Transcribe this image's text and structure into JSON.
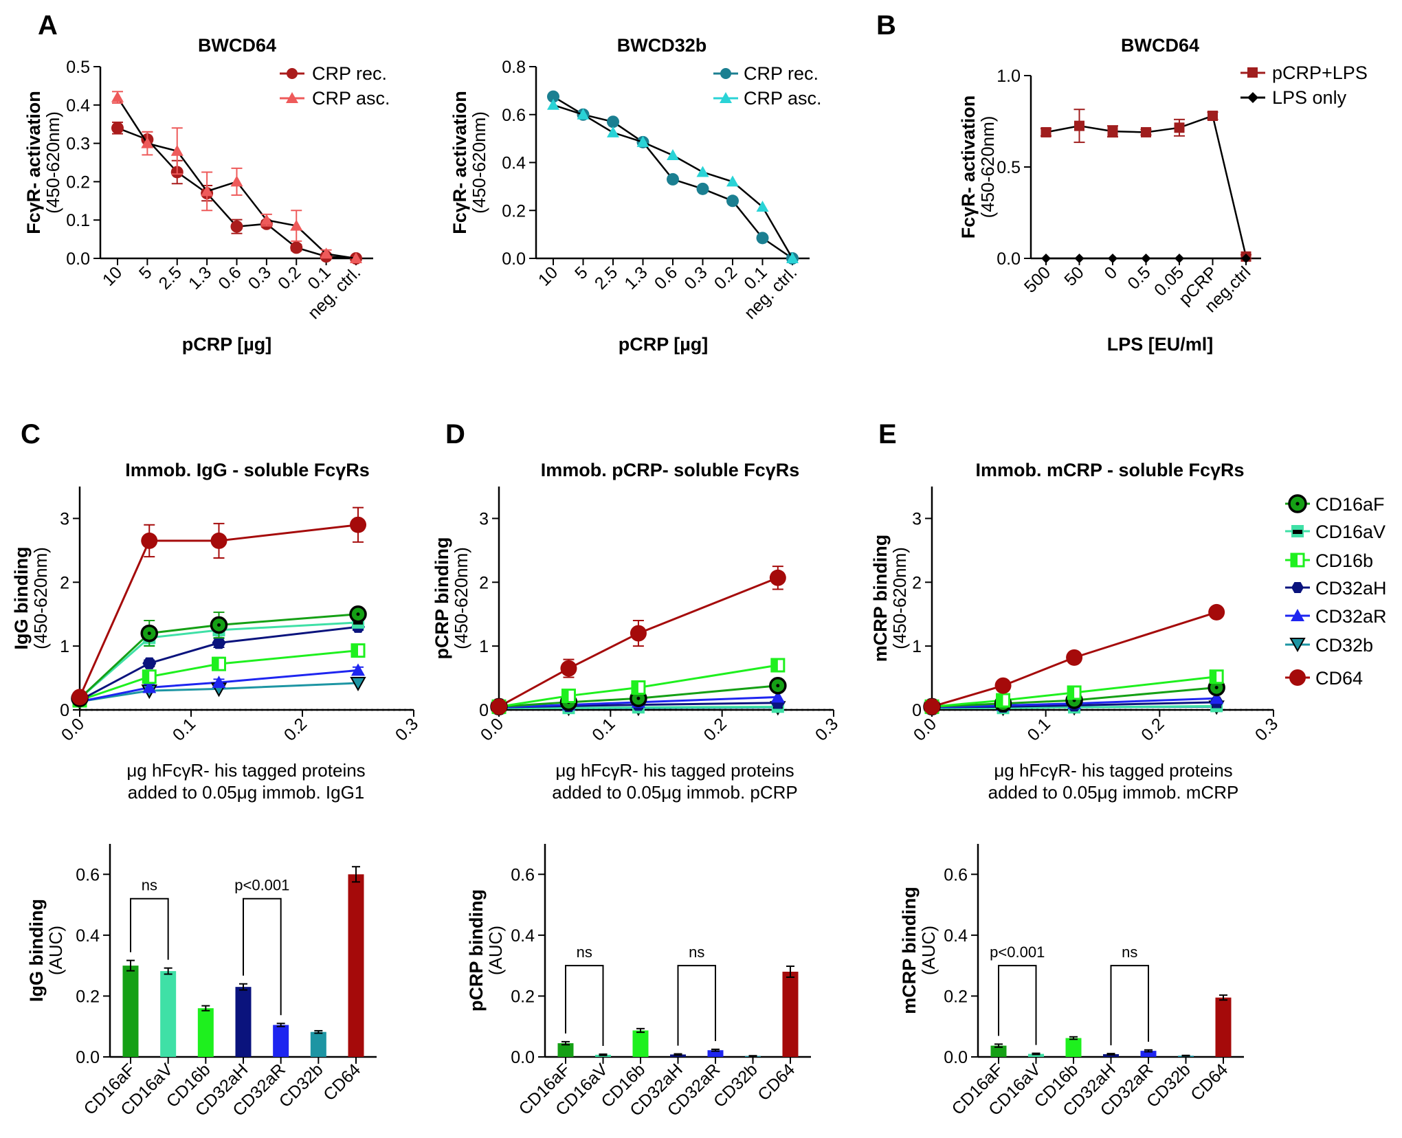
{
  "panel_labels": {
    "A": "A",
    "B": "B",
    "C": "C",
    "D": "D",
    "E": "E"
  },
  "axis_text": {
    "fcyr_main": "FcγR- activation",
    "fcyr_sub": "(450-620nm)",
    "nm_sub": "(450-620nm)",
    "auc_sub": "(AUC)",
    "binding_x1": "μg hFcγR- his tagged proteins"
  },
  "legend": {
    "crp_rec": "CRP rec.",
    "crp_asc": "CRP asc.",
    "pcrp_lps": "pCRP+LPS",
    "lps_only": "LPS only",
    "fcgr": [
      "CD16aF",
      "CD16aV",
      "CD16b",
      "CD32aH",
      "CD32aR",
      "CD32b",
      "CD64"
    ]
  },
  "colors": {
    "CD16aF": "#15a015",
    "CD16aV": "#3fe0a6",
    "CD16b": "#1ef01e",
    "CD32aH": "#0a137d",
    "CD32aR": "#1e25f0",
    "CD32b": "#1d95a3",
    "CD64": "#a50a0a",
    "crp_rec_A": "#aa1c1c",
    "crp_asc_A": "#ee5a5a",
    "crp_rec_A2": "#1b7f91",
    "crp_asc_A2": "#2ad3d6",
    "pcrp_lps": "#a01e1e"
  },
  "chart_data": [
    {
      "id": "A1",
      "type": "line",
      "title": "BWCD64",
      "xlabel": "pCRP [µg]",
      "ylabel": "FcγR- activation (450-620nm)",
      "categories": [
        "10",
        "5",
        "2.5",
        "1.3",
        "0.6",
        "0.3",
        "0.2",
        "0.1",
        "neg. ctrl."
      ],
      "ylim": [
        0,
        0.5
      ],
      "yticks": [
        "0.0",
        "0.1",
        "0.2",
        "0.3",
        "0.4",
        "0.5"
      ],
      "series": [
        {
          "name": "CRP rec.",
          "values": [
            0.34,
            0.31,
            0.225,
            0.17,
            0.083,
            0.09,
            0.028,
            0.005,
            0.0
          ],
          "errors": [
            0.015,
            0.02,
            0.03,
            0.02,
            0.018,
            0.008,
            0.008,
            0.005,
            0
          ]
        },
        {
          "name": "CRP asc.",
          "values": [
            0.42,
            0.3,
            0.28,
            0.175,
            0.2,
            0.1,
            0.085,
            0.012,
            0.0
          ],
          "errors": [
            0.015,
            0.03,
            0.06,
            0.05,
            0.035,
            0.015,
            0.04,
            0.01,
            0
          ]
        }
      ]
    },
    {
      "id": "A2",
      "type": "line",
      "title": "BWCD32b",
      "xlabel": "pCRP [µg]",
      "ylabel": "FcγR- activation (450-620nm)",
      "categories": [
        "10",
        "5",
        "2.5",
        "1.3",
        "0.6",
        "0.3",
        "0.2",
        "0.1",
        "neg. ctrl."
      ],
      "ylim": [
        0,
        0.8
      ],
      "yticks": [
        "0.0",
        "0.2",
        "0.4",
        "0.6",
        "0.8"
      ],
      "series": [
        {
          "name": "CRP rec.",
          "values": [
            0.675,
            0.6,
            0.57,
            0.485,
            0.33,
            0.29,
            0.24,
            0.085,
            0.0
          ]
        },
        {
          "name": "CRP asc.",
          "values": [
            0.64,
            0.6,
            0.525,
            0.485,
            0.43,
            0.36,
            0.32,
            0.215,
            0.0
          ]
        }
      ]
    },
    {
      "id": "B",
      "type": "line",
      "title": "BWCD64",
      "xlabel": "LPS [EU/ml]",
      "ylabel": "FcγR- activation (450-620nm)",
      "categories": [
        "500",
        "50",
        "0",
        "0.5",
        "0.05",
        "pCRP",
        "neg.ctrl"
      ],
      "ylim": [
        0,
        1.0
      ],
      "yticks": [
        "0.0",
        "0.5",
        "1.0"
      ],
      "series": [
        {
          "name": "pCRP+LPS",
          "values": [
            0.69,
            0.725,
            0.695,
            0.69,
            0.715,
            0.78,
            0.01
          ],
          "errors": [
            0.02,
            0.09,
            0.03,
            0.015,
            0.045,
            0.02,
            0.01
          ]
        },
        {
          "name": "LPS only",
          "values": [
            0.0,
            0.0,
            0.0,
            0.0,
            0.0,
            null,
            0.0
          ]
        }
      ]
    },
    {
      "id": "C",
      "type": "line",
      "title": "Immob. IgG - soluble FcγRs",
      "xlabel": [
        "μg hFcγR- his tagged proteins",
        "added to 0.05μg immob. IgG1"
      ],
      "ylabel": "IgG binding (450-620nm)",
      "x": [
        0,
        0.0625,
        0.125,
        0.25
      ],
      "xlim": [
        0,
        0.3
      ],
      "xticks": [
        "0.0",
        "0.1",
        "0.2",
        "0.3"
      ],
      "ylim": [
        0,
        3.5
      ],
      "yticks": [
        "0",
        "1",
        "2",
        "3"
      ],
      "dotted_baseline": 0,
      "series": [
        {
          "name": "CD64",
          "values": [
            0.2,
            2.65,
            2.65,
            2.9
          ],
          "errors": [
            0.03,
            0.25,
            0.27,
            0.27
          ]
        },
        {
          "name": "CD16aF",
          "values": [
            0.18,
            1.2,
            1.33,
            1.5
          ],
          "errors": [
            0.03,
            0.2,
            0.2,
            0.04
          ]
        },
        {
          "name": "CD16aV",
          "values": [
            0.18,
            1.13,
            1.25,
            1.37
          ],
          "errors": [
            0.03,
            0.12,
            0.12,
            0.05
          ]
        },
        {
          "name": "CD32aH",
          "values": [
            0.15,
            0.73,
            1.05,
            1.3
          ],
          "errors": [
            0.03,
            0.05,
            0.07,
            0.05
          ]
        },
        {
          "name": "CD16b",
          "values": [
            0.15,
            0.52,
            0.72,
            0.93
          ],
          "errors": [
            0.03,
            0.05,
            0.1,
            0.06
          ]
        },
        {
          "name": "CD32aR",
          "values": [
            0.13,
            0.35,
            0.43,
            0.62
          ],
          "errors": [
            0.03,
            0.05,
            0.05,
            0.05
          ]
        },
        {
          "name": "CD32b",
          "values": [
            0.13,
            0.3,
            0.33,
            0.42
          ],
          "errors": [
            0.02,
            0.04,
            0.04,
            0.03
          ]
        }
      ]
    },
    {
      "id": "D",
      "type": "line",
      "title": "Immob. pCRP- soluble FcγRs",
      "xlabel": [
        "μg hFcγR- his tagged proteins",
        "added to 0.05μg immob. pCRP"
      ],
      "ylabel": "pCRP binding (450-620nm)",
      "x": [
        0,
        0.0625,
        0.125,
        0.25
      ],
      "xlim": [
        0,
        0.3
      ],
      "xticks": [
        "0.0",
        "0.1",
        "0.2",
        "0.3"
      ],
      "ylim": [
        0,
        3.5
      ],
      "yticks": [
        "0",
        "1",
        "2",
        "3"
      ],
      "dotted_baseline": 0,
      "series": [
        {
          "name": "CD64",
          "values": [
            0.05,
            0.65,
            1.2,
            2.07
          ],
          "errors": [
            0.03,
            0.14,
            0.2,
            0.18
          ]
        },
        {
          "name": "CD16b",
          "values": [
            0.05,
            0.22,
            0.35,
            0.7
          ],
          "errors": [
            0.02,
            0.04,
            0.05,
            0.06
          ]
        },
        {
          "name": "CD16aF",
          "values": [
            0.05,
            0.12,
            0.18,
            0.38
          ],
          "errors": [
            0.02,
            0.03,
            0.03,
            0.03
          ]
        },
        {
          "name": "CD32aR",
          "values": [
            0.04,
            0.08,
            0.12,
            0.2
          ],
          "errors": [
            0.02,
            0.02,
            0.02,
            0.02
          ]
        },
        {
          "name": "CD32aH",
          "values": [
            0.04,
            0.06,
            0.08,
            0.11
          ],
          "errors": [
            0.02,
            0.02,
            0.02,
            0.02
          ]
        },
        {
          "name": "CD16aV",
          "values": [
            0.03,
            0.03,
            0.04,
            0.05
          ],
          "errors": [
            0.02,
            0.02,
            0.02,
            0.02
          ]
        },
        {
          "name": "CD32b",
          "values": [
            0.03,
            0.03,
            0.03,
            0.04
          ],
          "errors": [
            0.02,
            0.02,
            0.02,
            0.02
          ]
        }
      ]
    },
    {
      "id": "E",
      "type": "line",
      "title": "Immob. mCRP - soluble FcγRs",
      "xlabel": [
        "μg hFcγR- his tagged proteins",
        "added to 0.05μg immob. mCRP"
      ],
      "ylabel": "mCRP binding (450-620nm)",
      "x": [
        0,
        0.0625,
        0.125,
        0.25
      ],
      "xlim": [
        0,
        0.3
      ],
      "xticks": [
        "0.0",
        "0.1",
        "0.2",
        "0.3"
      ],
      "ylim": [
        0,
        3.5
      ],
      "yticks": [
        "0",
        "1",
        "2",
        "3"
      ],
      "dotted_baseline": 0,
      "series": [
        {
          "name": "CD64",
          "values": [
            0.05,
            0.38,
            0.82,
            1.53
          ],
          "errors": [
            0.02,
            0.04,
            0.05,
            0.06
          ]
        },
        {
          "name": "CD16b",
          "values": [
            0.05,
            0.15,
            0.27,
            0.52
          ],
          "errors": [
            0.02,
            0.03,
            0.04,
            0.05
          ]
        },
        {
          "name": "CD16aF",
          "values": [
            0.05,
            0.1,
            0.15,
            0.35
          ],
          "errors": [
            0.02,
            0.02,
            0.03,
            0.03
          ]
        },
        {
          "name": "CD32aR",
          "values": [
            0.04,
            0.07,
            0.1,
            0.18
          ],
          "errors": [
            0.02,
            0.02,
            0.02,
            0.02
          ]
        },
        {
          "name": "CD32aH",
          "values": [
            0.04,
            0.05,
            0.07,
            0.12
          ],
          "errors": [
            0.02,
            0.02,
            0.02,
            0.02
          ]
        },
        {
          "name": "CD16aV",
          "values": [
            0.03,
            0.03,
            0.04,
            0.06
          ],
          "errors": [
            0.02,
            0.02,
            0.02,
            0.02
          ]
        },
        {
          "name": "CD32b",
          "values": [
            0.03,
            0.03,
            0.04,
            0.05
          ],
          "errors": [
            0.02,
            0.02,
            0.02,
            0.02
          ]
        }
      ]
    },
    {
      "id": "C_auc",
      "type": "bar",
      "ylabel": "IgG binding (AUC)",
      "categories": [
        "CD16aF",
        "CD16aV",
        "CD16b",
        "CD32aH",
        "CD32aR",
        "CD32b",
        "CD64"
      ],
      "values": [
        0.3,
        0.282,
        0.16,
        0.23,
        0.105,
        0.082,
        0.6
      ],
      "errors": [
        0.017,
        0.01,
        0.008,
        0.01,
        0.005,
        0.004,
        0.025
      ],
      "ylim": [
        0,
        0.7
      ],
      "yticks": [
        "0.0",
        "0.2",
        "0.4",
        "0.6"
      ],
      "annotations": [
        {
          "text": "ns",
          "from": "CD16aF",
          "to": "CD16aV"
        },
        {
          "text": "p<0.001",
          "from": "CD32aH",
          "to": "CD32aR"
        }
      ]
    },
    {
      "id": "D_auc",
      "type": "bar",
      "ylabel": "pCRP binding (AUC)",
      "categories": [
        "CD16aF",
        "CD16aV",
        "CD16b",
        "CD32aH",
        "CD32aR",
        "CD32b",
        "CD64"
      ],
      "values": [
        0.045,
        0.007,
        0.087,
        0.008,
        0.022,
        0.003,
        0.28
      ],
      "errors": [
        0.005,
        0.002,
        0.006,
        0.002,
        0.003,
        0.001,
        0.018
      ],
      "ylim": [
        0,
        0.7
      ],
      "yticks": [
        "0.0",
        "0.2",
        "0.4",
        "0.6"
      ],
      "annotations": [
        {
          "text": "ns",
          "from": "CD16aF",
          "to": "CD16aV"
        },
        {
          "text": "ns",
          "from": "CD32aH",
          "to": "CD32aR"
        }
      ]
    },
    {
      "id": "E_auc",
      "type": "bar",
      "ylabel": "mCRP binding (AUC)",
      "categories": [
        "CD16aF",
        "CD16aV",
        "CD16b",
        "CD32aH",
        "CD32aR",
        "CD32b",
        "CD64"
      ],
      "values": [
        0.037,
        0.01,
        0.062,
        0.009,
        0.02,
        0.004,
        0.195
      ],
      "errors": [
        0.005,
        0.002,
        0.004,
        0.002,
        0.003,
        0.001,
        0.008
      ],
      "ylim": [
        0,
        0.7
      ],
      "yticks": [
        "0.0",
        "0.2",
        "0.4",
        "0.6"
      ],
      "annotations": [
        {
          "text": "p<0.001",
          "from": "CD16aF",
          "to": "CD16aV"
        },
        {
          "text": "ns",
          "from": "CD32aH",
          "to": "CD32aR"
        }
      ]
    }
  ]
}
